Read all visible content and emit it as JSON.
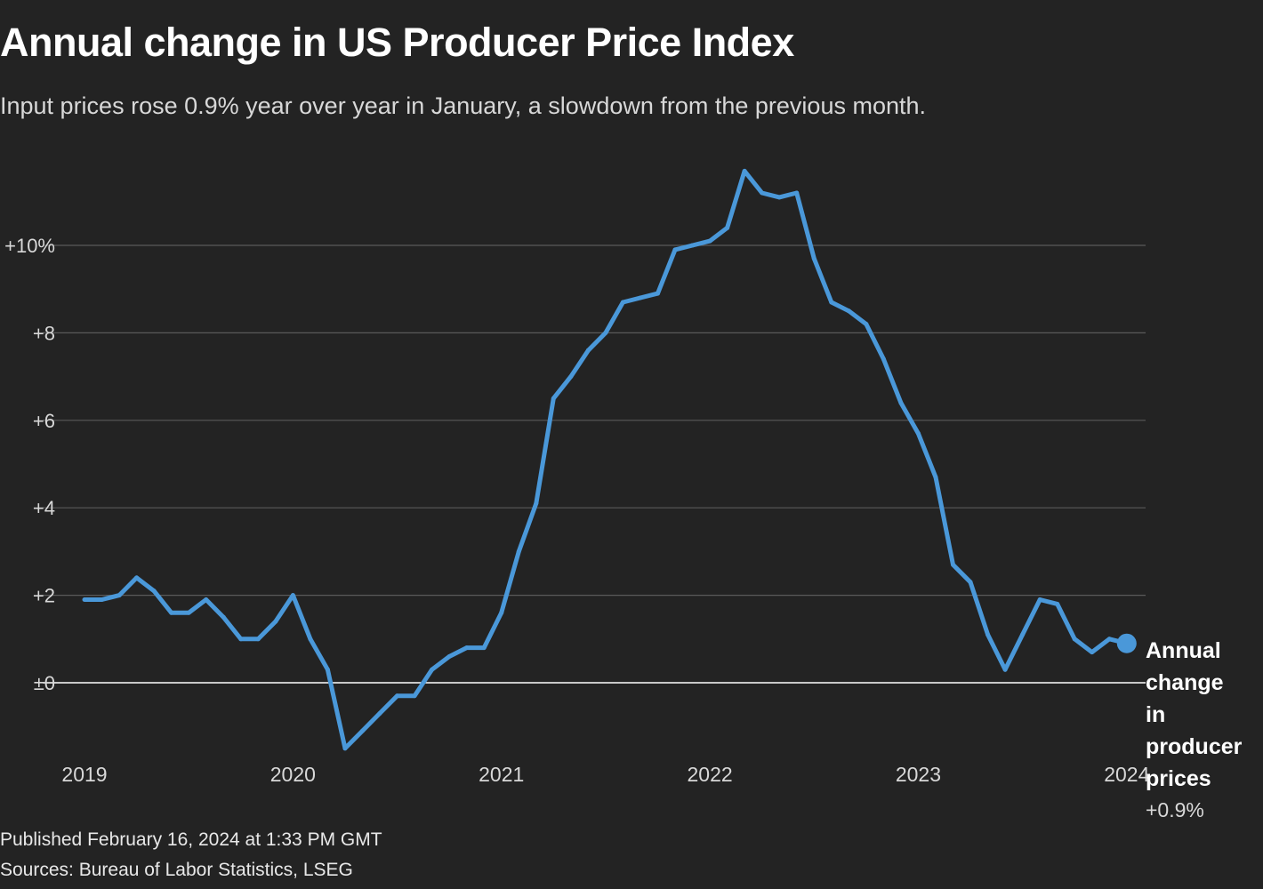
{
  "title": "Annual change in US Producer Price Index",
  "subtitle": "Input prices rose 0.9% year over year in January, a slowdown from the previous month.",
  "footer": {
    "published": "Published February 16, 2024 at 1:33 PM GMT",
    "sources": "Sources: Bureau of Labor Statistics, LSEG"
  },
  "colors": {
    "background": "#232323",
    "line": "#4a98d9",
    "grid": "#5a5a5a",
    "zero_line": "#ffffff"
  },
  "chart_data": {
    "type": "line",
    "title": "Annual change in US Producer Price Index",
    "xlabel": "",
    "ylabel": "",
    "ylim": [
      -1.7,
      12
    ],
    "xlim": [
      "2019-01",
      "2024-01"
    ],
    "grid": true,
    "y_ticks": [
      {
        "value": 0,
        "label": "±0"
      },
      {
        "value": 2,
        "label": "+2"
      },
      {
        "value": 4,
        "label": "+4"
      },
      {
        "value": 6,
        "label": "+6"
      },
      {
        "value": 8,
        "label": "+8"
      },
      {
        "value": 10,
        "label": "+10%"
      }
    ],
    "x_ticks": [
      "2019",
      "2020",
      "2021",
      "2022",
      "2023",
      "2024"
    ],
    "series": [
      {
        "name": "Annual change in producer prices",
        "end_label": "+0.9%",
        "x": [
          "2019-01",
          "2019-02",
          "2019-03",
          "2019-04",
          "2019-05",
          "2019-06",
          "2019-07",
          "2019-08",
          "2019-09",
          "2019-10",
          "2019-11",
          "2019-12",
          "2020-01",
          "2020-02",
          "2020-03",
          "2020-04",
          "2020-05",
          "2020-06",
          "2020-07",
          "2020-08",
          "2020-09",
          "2020-10",
          "2020-11",
          "2020-12",
          "2021-01",
          "2021-02",
          "2021-03",
          "2021-04",
          "2021-05",
          "2021-06",
          "2021-07",
          "2021-08",
          "2021-09",
          "2021-10",
          "2021-11",
          "2021-12",
          "2022-01",
          "2022-02",
          "2022-03",
          "2022-04",
          "2022-05",
          "2022-06",
          "2022-07",
          "2022-08",
          "2022-09",
          "2022-10",
          "2022-11",
          "2022-12",
          "2023-01",
          "2023-02",
          "2023-03",
          "2023-04",
          "2023-05",
          "2023-06",
          "2023-07",
          "2023-08",
          "2023-09",
          "2023-10",
          "2023-11",
          "2023-12",
          "2024-01"
        ],
        "values": [
          1.9,
          1.9,
          2.0,
          2.4,
          2.1,
          1.6,
          1.6,
          1.9,
          1.5,
          1.0,
          1.0,
          1.4,
          2.0,
          1.0,
          0.3,
          -1.5,
          -1.1,
          -0.7,
          -0.3,
          -0.3,
          0.3,
          0.6,
          0.8,
          0.8,
          1.6,
          3.0,
          4.1,
          6.5,
          7.0,
          7.6,
          8.0,
          8.7,
          8.8,
          8.9,
          9.9,
          10.0,
          10.1,
          10.4,
          11.7,
          11.2,
          11.1,
          11.2,
          9.7,
          8.7,
          8.5,
          8.2,
          7.4,
          6.4,
          5.7,
          4.7,
          2.7,
          2.3,
          1.1,
          0.3,
          1.1,
          1.9,
          1.8,
          1.0,
          0.7,
          1.0,
          0.9
        ]
      }
    ]
  }
}
